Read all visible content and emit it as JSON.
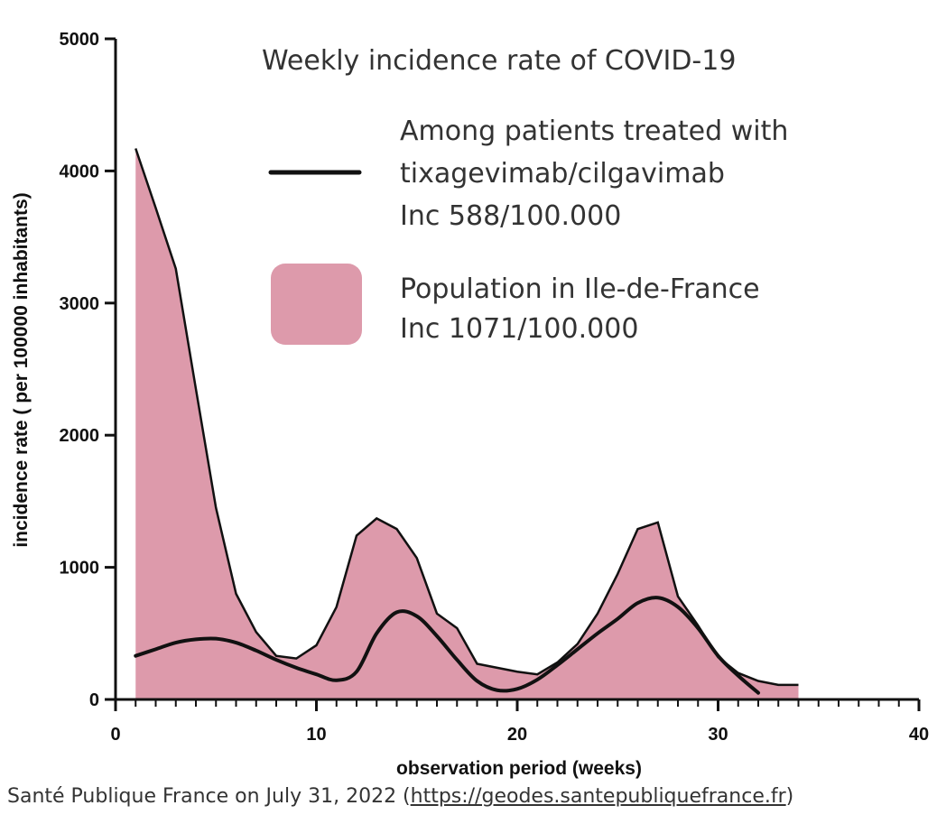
{
  "chart_data": {
    "type": "area",
    "title": "Weekly incidence rate of COVID-19",
    "xlabel": "observation period (weeks)",
    "ylabel": "incidence rate ( per 100000 inhabitants)",
    "xlim": [
      0,
      40
    ],
    "ylim": [
      0,
      5000
    ],
    "x_ticks": [
      0,
      10,
      20,
      30,
      40
    ],
    "x_tick_labels": [
      "0",
      "10",
      "20",
      "30",
      "40"
    ],
    "y_ticks": [
      0,
      1000,
      2000,
      3000,
      4000,
      5000
    ],
    "y_tick_labels": [
      "0",
      "1000",
      "2000",
      "3000",
      "4000",
      "5000"
    ],
    "series": [
      {
        "name": "Population in Ile-de-France",
        "style": "filled-area",
        "color": "#dd9aab",
        "edge_color": "#111111",
        "x": [
          1,
          2,
          3,
          4,
          5,
          6,
          7,
          8,
          9,
          10,
          11,
          12,
          13,
          14,
          15,
          16,
          17,
          18,
          19,
          20,
          21,
          22,
          23,
          24,
          25,
          26,
          27,
          28,
          29,
          30,
          31,
          32,
          33,
          34
        ],
        "values": [
          4170,
          3720,
          3260,
          2350,
          1450,
          800,
          510,
          330,
          310,
          410,
          700,
          1240,
          1370,
          1290,
          1070,
          650,
          540,
          270,
          240,
          210,
          190,
          280,
          420,
          650,
          950,
          1290,
          1340,
          780,
          560,
          320,
          200,
          140,
          110,
          110
        ]
      },
      {
        "name": "Among patients treated with tixagevimab/cilgavimab",
        "style": "line",
        "color": "#111111",
        "x": [
          1,
          2,
          3,
          4,
          5,
          6,
          7,
          8,
          9,
          10,
          11,
          12,
          13,
          14,
          15,
          16,
          17,
          18,
          19,
          20,
          21,
          22,
          23,
          24,
          25,
          26,
          27,
          28,
          29,
          30,
          31,
          32
        ],
        "values": [
          330,
          380,
          430,
          455,
          460,
          430,
          370,
          300,
          240,
          190,
          145,
          210,
          500,
          660,
          630,
          480,
          300,
          140,
          70,
          80,
          150,
          260,
          380,
          500,
          610,
          730,
          770,
          700,
          540,
          330,
          180,
          50
        ]
      }
    ],
    "legend": {
      "placement": "top-right",
      "items": [
        {
          "lines": [
            "Among patients treated with",
            "tixagevimab/cilgavimab",
            "Inc 588/100.000"
          ],
          "swatch": "line"
        },
        {
          "lines": [
            "Population in Ile-de-France",
            "Inc 1071/100.000"
          ],
          "swatch": "area"
        }
      ]
    }
  },
  "caption": {
    "text": "Santé Publique France on July 31, 2022 (",
    "url": "https://geodes.santepubliquefrance.fr",
    "close": ")"
  }
}
